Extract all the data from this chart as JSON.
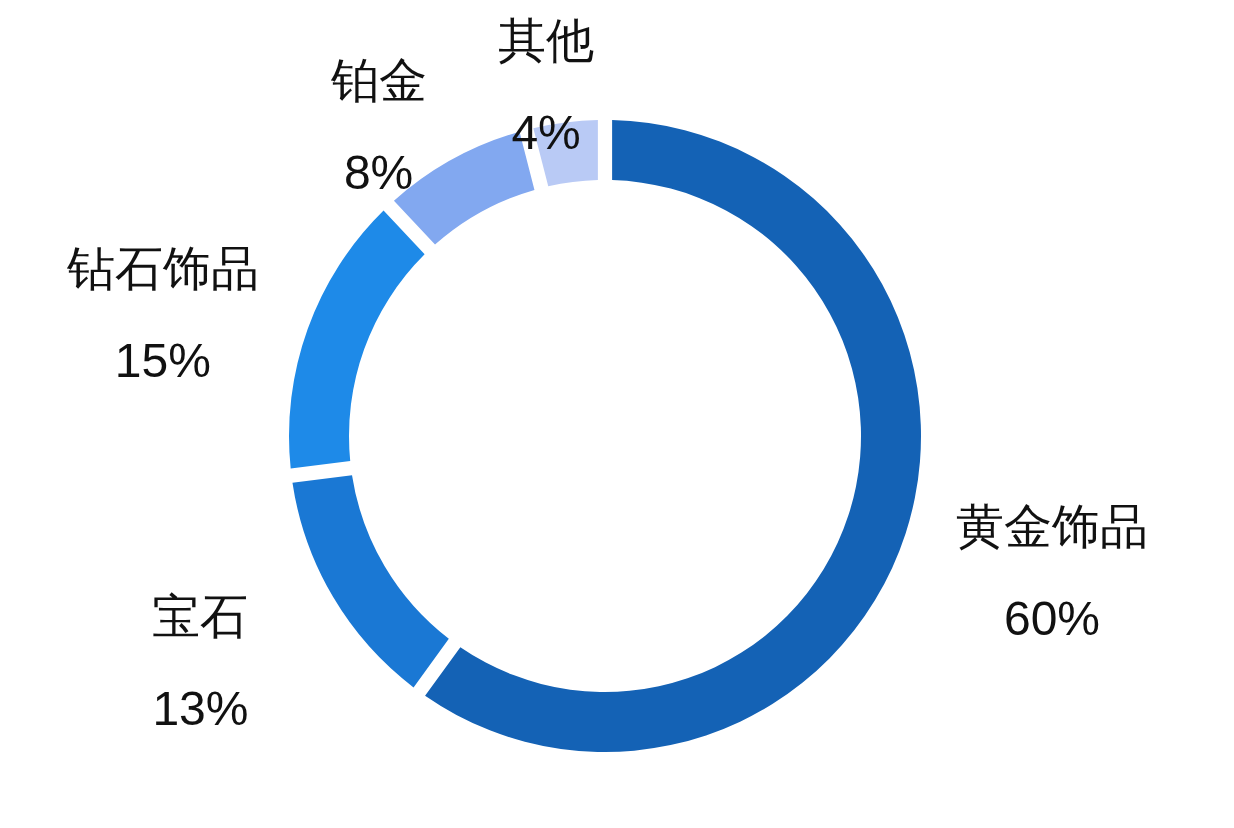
{
  "chart_data": {
    "type": "donut",
    "categories": [
      "黄金饰品",
      "宝石",
      "钻石饰品",
      "铂金",
      "其他"
    ],
    "values": [
      60,
      13,
      15,
      8,
      4
    ],
    "value_labels": [
      "60%",
      "13%",
      "15%",
      "8%",
      "4%"
    ],
    "colors": [
      "#1462b5",
      "#1a78d4",
      "#1e8ae8",
      "#82a8f0",
      "#b9caf5"
    ]
  }
}
